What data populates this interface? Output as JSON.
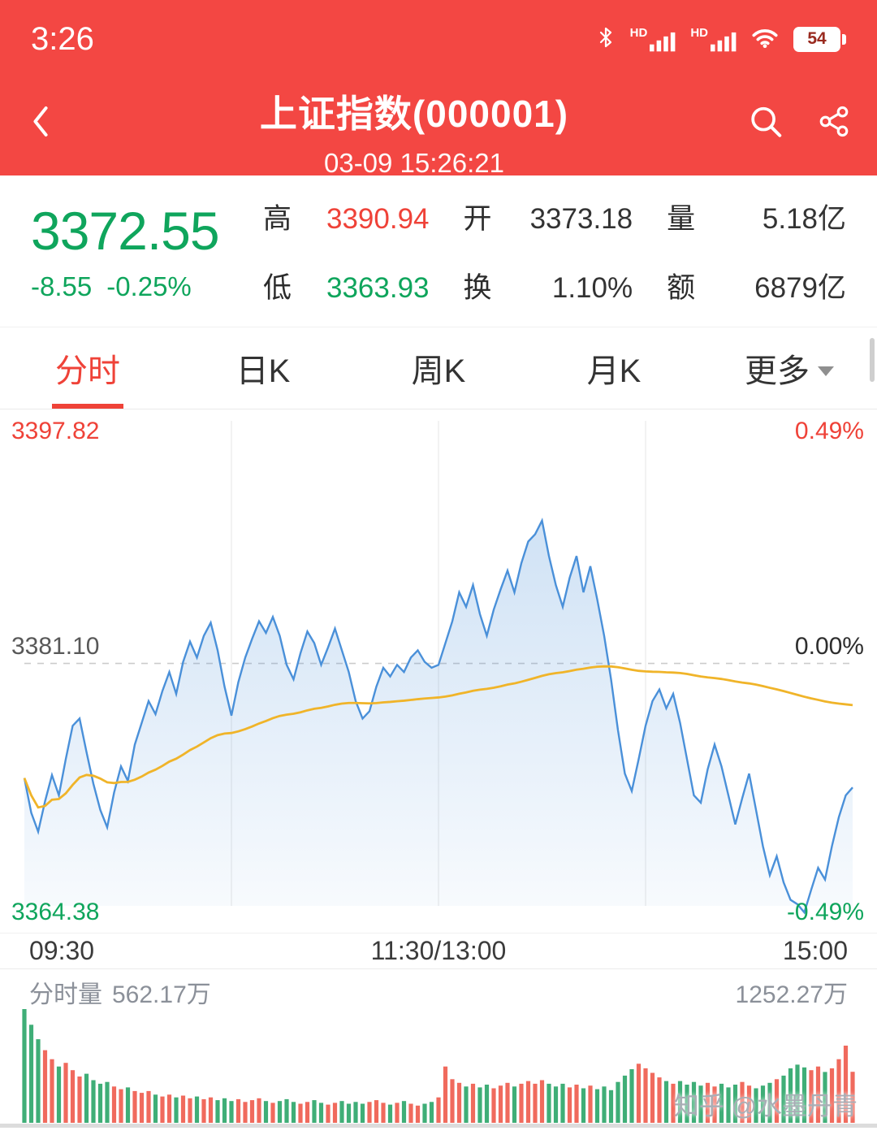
{
  "colors": {
    "theme_red": "#f34743",
    "red_text": "#ef4238",
    "green": "#0fa55c",
    "line_blue": "#4a90d9",
    "avg_yellow": "#f0b429",
    "vol_red": "#f06a5d",
    "vol_green": "#3fae77"
  },
  "status_bar": {
    "time": "3:26",
    "sim_label": "HD",
    "battery_level": "54"
  },
  "header": {
    "title": "上证指数(000001)",
    "subtitle": "03-09 15:26:21"
  },
  "quote": {
    "price": "3372.55",
    "change": "-8.55",
    "change_pct": "-0.25%",
    "stats": [
      {
        "label": "高",
        "value": "3390.94",
        "color": "red"
      },
      {
        "label": "开",
        "value": "3373.18",
        "color": "dark"
      },
      {
        "label": "量",
        "value": "5.18亿",
        "color": "dark"
      },
      {
        "label": "低",
        "value": "3363.93",
        "color": "green"
      },
      {
        "label": "换",
        "value": "1.10%",
        "color": "dark"
      },
      {
        "label": "额",
        "value": "6879亿",
        "color": "dark"
      }
    ]
  },
  "tabs": {
    "items": [
      {
        "label": "分时",
        "active": true
      },
      {
        "label": "日K",
        "active": false
      },
      {
        "label": "周K",
        "active": false
      },
      {
        "label": "月K",
        "active": false
      },
      {
        "label": "更多",
        "active": false,
        "has_dropdown": true
      }
    ]
  },
  "chart_labels": {
    "y_top": "3397.82",
    "pct_top": "0.49%",
    "y_mid": "3381.10",
    "pct_mid": "0.00%",
    "y_bottom": "3364.38",
    "pct_bottom": "-0.49%",
    "x_ticks": [
      "09:30",
      "11:30/13:00",
      "15:00"
    ]
  },
  "volume_pane": {
    "label": "分时量",
    "current": "562.17万",
    "max_label": "1252.27万"
  },
  "watermark": "知乎 @水墨丹青",
  "chart_data": {
    "type": "line",
    "title": "上证指数(000001) 分时走势 03-09",
    "x_ticks": [
      "09:30",
      "11:30/13:00",
      "15:00"
    ],
    "x_note": "2-minute intervals, 09:30-11:30 / 13:00-15:00",
    "ylim": [
      3364.38,
      3397.82
    ],
    "prev_close": 3381.1,
    "y_ticks": [
      {
        "value": 3397.82,
        "pct": "0.49%"
      },
      {
        "value": 3381.1,
        "pct": "0.00%"
      },
      {
        "value": 3364.38,
        "pct": "-0.49%"
      }
    ],
    "series": [
      {
        "name": "价格",
        "values": [
          3373.2,
          3370.8,
          3369.5,
          3371.6,
          3373.4,
          3372.0,
          3374.5,
          3376.8,
          3377.3,
          3375.0,
          3372.8,
          3371.0,
          3369.8,
          3372.2,
          3374.0,
          3373.0,
          3375.5,
          3377.0,
          3378.5,
          3377.6,
          3379.2,
          3380.5,
          3379.0,
          3381.2,
          3382.6,
          3381.5,
          3383.0,
          3383.9,
          3382.0,
          3379.5,
          3377.5,
          3379.8,
          3381.5,
          3382.8,
          3384.0,
          3383.2,
          3384.3,
          3383.0,
          3381.0,
          3380.0,
          3381.8,
          3383.3,
          3382.5,
          3381.0,
          3382.2,
          3383.5,
          3382.0,
          3380.5,
          3378.5,
          3377.3,
          3377.8,
          3379.5,
          3380.8,
          3380.2,
          3381.0,
          3380.5,
          3381.5,
          3382.0,
          3381.2,
          3380.8,
          3381.0,
          3382.5,
          3384.0,
          3386.0,
          3385.0,
          3386.5,
          3384.5,
          3383.0,
          3384.8,
          3386.2,
          3387.5,
          3386.0,
          3388.0,
          3389.5,
          3390.0,
          3390.94,
          3388.5,
          3386.5,
          3385.0,
          3387.0,
          3388.5,
          3386.0,
          3387.8,
          3385.5,
          3383.0,
          3380.0,
          3376.5,
          3373.5,
          3372.3,
          3374.5,
          3376.8,
          3378.5,
          3379.3,
          3378.0,
          3379.0,
          3377.0,
          3374.5,
          3372.0,
          3371.5,
          3373.8,
          3375.5,
          3374.0,
          3372.0,
          3370.0,
          3371.8,
          3373.5,
          3371.0,
          3368.5,
          3366.5,
          3367.8,
          3366.0,
          3364.8,
          3364.5,
          3363.93,
          3365.5,
          3367.0,
          3366.2,
          3368.5,
          3370.5,
          3372.0,
          3372.55
        ]
      },
      {
        "name": "均价",
        "derived": "cumulative_average_of_price"
      }
    ],
    "volume": {
      "unit": "万",
      "max": 1252.27,
      "current": 562.17,
      "values": [
        1252.27,
        1080,
        920,
        800,
        700,
        620,
        660,
        580,
        510,
        540,
        470,
        430,
        450,
        400,
        370,
        390,
        350,
        330,
        350,
        310,
        290,
        310,
        280,
        300,
        270,
        290,
        260,
        280,
        250,
        270,
        240,
        260,
        230,
        250,
        270,
        240,
        220,
        240,
        260,
        230,
        210,
        230,
        250,
        220,
        200,
        220,
        240,
        210,
        230,
        210,
        230,
        250,
        220,
        200,
        220,
        240,
        210,
        190,
        210,
        230,
        280,
        620,
        480,
        440,
        400,
        430,
        390,
        420,
        380,
        410,
        440,
        400,
        430,
        460,
        430,
        470,
        430,
        400,
        430,
        390,
        420,
        380,
        410,
        370,
        400,
        360,
        450,
        520,
        590,
        650,
        600,
        550,
        500,
        460,
        430,
        460,
        420,
        450,
        410,
        440,
        400,
        430,
        390,
        420,
        450,
        410,
        380,
        410,
        440,
        480,
        520,
        600,
        640,
        610,
        580,
        620,
        560,
        600,
        700,
        850,
        562.17
      ]
    }
  }
}
